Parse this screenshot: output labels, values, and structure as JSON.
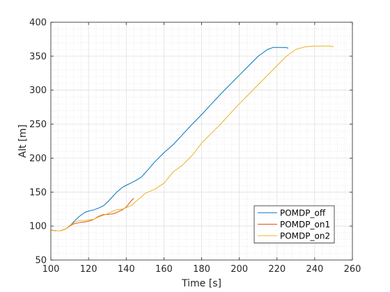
{
  "chart_data": {
    "type": "line",
    "xlabel": "Time [s]",
    "ylabel": "Alt [m]",
    "xlim": [
      100,
      260
    ],
    "ylim": [
      50,
      400
    ],
    "xticks": [
      100,
      120,
      140,
      160,
      180,
      200,
      220,
      240,
      260
    ],
    "yticks": [
      50,
      100,
      150,
      200,
      250,
      300,
      350,
      400
    ],
    "grid": true,
    "minor_grid": true,
    "legend_position": "bottom-right",
    "series": [
      {
        "name": "POMDP_off",
        "color": "#0072BD",
        "x": [
          100,
          103,
          105,
          108,
          110,
          112,
          115,
          118,
          120,
          123,
          125,
          128,
          130,
          133,
          135,
          138,
          140,
          143,
          145,
          148,
          150,
          155,
          160,
          165,
          170,
          175,
          180,
          185,
          190,
          195,
          200,
          205,
          210,
          215,
          218,
          220,
          222,
          224,
          226
        ],
        "y": [
          94,
          93,
          93,
          96,
          100,
          106,
          114,
          120,
          122,
          124,
          126,
          130,
          135,
          144,
          150,
          157,
          160,
          164,
          167,
          172,
          178,
          194,
          208,
          220,
          235,
          250,
          264,
          279,
          294,
          308,
          322,
          336,
          350,
          360,
          363,
          363,
          363,
          363,
          362
        ]
      },
      {
        "name": "POMDP_on1",
        "color": "#D95319",
        "x": [
          100,
          103,
          105,
          108,
          110,
          112,
          115,
          118,
          120,
          123,
          125,
          128,
          130,
          133,
          135,
          138,
          140,
          142,
          144
        ],
        "y": [
          94,
          93,
          93,
          96,
          100,
          103,
          105,
          106,
          107,
          110,
          114,
          117,
          117,
          118,
          120,
          124,
          128,
          135,
          141
        ]
      },
      {
        "name": "POMDP_on2",
        "color": "#EDB120",
        "x": [
          100,
          103,
          105,
          108,
          110,
          113,
          115,
          118,
          120,
          123,
          125,
          128,
          130,
          133,
          135,
          138,
          140,
          143,
          145,
          148,
          150,
          155,
          160,
          165,
          170,
          175,
          180,
          185,
          190,
          195,
          200,
          205,
          210,
          215,
          220,
          225,
          230,
          235,
          240,
          243,
          245,
          248,
          250
        ],
        "y": [
          94,
          93,
          93,
          96,
          101,
          106,
          108,
          108,
          109,
          110,
          113,
          116,
          118,
          122,
          124,
          125,
          127,
          131,
          136,
          143,
          148,
          154,
          163,
          180,
          190,
          204,
          222,
          236,
          250,
          265,
          280,
          294,
          308,
          322,
          336,
          350,
          360,
          364,
          365,
          365,
          365,
          365,
          364
        ]
      }
    ]
  }
}
